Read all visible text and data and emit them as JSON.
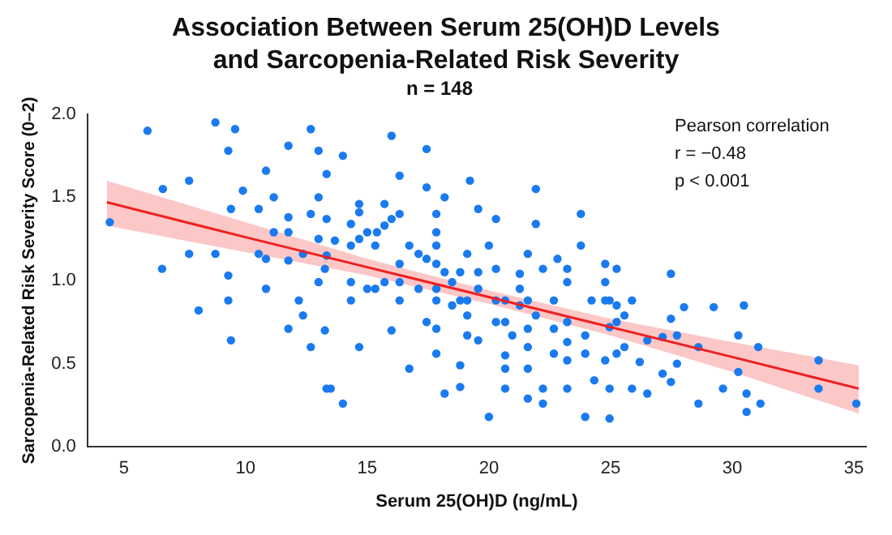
{
  "chart_data": {
    "type": "scatter",
    "title": "Association Between Serum 25(OH)D Levels and Sarcopenia-Related Risk Severity",
    "subtitle": "n = 148",
    "xlabel": "Serum 25(OH)D (ng/mL)",
    "ylabel": "Sarcopenia-Related Risk Severity Score (0–2)",
    "annotations": [
      "Pearson correlation",
      "r = −0.48",
      "p < 0.001"
    ],
    "xlim": [
      3.5,
      35.5
    ],
    "xticks": [
      5,
      10,
      15,
      20,
      25,
      30,
      35
    ],
    "ylim": [
      0,
      2
    ],
    "yticks": [
      {
        "value": 0,
        "label": "0.0"
      },
      0.5,
      {
        "value": 1,
        "label": "1.0"
      },
      1.5,
      {
        "value": 2,
        "label": "2.0"
      }
    ],
    "grid": false,
    "legend": false,
    "series": [
      {
        "marker": "circle",
        "color": "#1a7af0",
        "x": [
          4.42,
          5.97,
          6.6,
          6.57,
          7.68,
          7.68,
          8.07,
          8.76,
          8.76,
          9.29,
          9.57,
          9.4,
          9.29,
          9.29,
          9.4,
          9.89,
          10.54,
          10.54,
          10.84,
          10.84,
          10.84,
          11.16,
          11.16,
          11.76,
          11.76,
          11.76,
          11.76,
          11.76,
          12.19,
          12.36,
          12.36,
          12.68,
          12.68,
          12.68,
          13.0,
          13.0,
          13.0,
          13.0,
          13.26,
          13.26,
          13.5,
          13.33,
          13.33,
          13.33,
          13.33,
          13.67,
          14.0,
          14.0,
          14.33,
          14.33,
          14.33,
          14.33,
          14.67,
          14.67,
          14.67,
          14.67,
          15.0,
          15.0,
          15.33,
          15.33,
          15.4,
          15.71,
          15.71,
          15.71,
          16.0,
          16.0,
          16.0,
          16.33,
          16.33,
          16.33,
          16.33,
          16.33,
          16.73,
          16.73,
          17.11,
          17.11,
          17.44,
          17.44,
          17.44,
          17.44,
          17.84,
          17.84,
          17.84,
          17.84,
          17.84,
          17.84,
          17.84,
          17.84,
          18.18,
          18.18,
          18.18,
          18.49,
          18.49,
          18.82,
          18.82,
          18.82,
          18.82,
          19.11,
          19.11,
          19.11,
          19.11,
          19.22,
          19.56,
          19.56,
          19.56,
          19.56,
          20.0,
          20.0,
          20.29,
          20.29,
          20.29,
          20.29,
          20.67,
          20.67,
          20.67,
          20.67,
          20.67,
          20.96,
          21.27,
          21.27,
          21.27,
          21.6,
          21.6,
          21.6,
          21.6,
          21.6,
          21.6,
          21.93,
          21.93,
          21.93,
          22.22,
          22.22,
          22.22,
          22.67,
          22.67,
          22.67,
          22.82,
          23.22,
          23.22,
          23.22,
          23.22,
          23.22,
          23.22,
          23.78,
          23.78,
          23.96,
          23.96,
          23.96,
          24.22,
          24.33,
          24.78,
          24.78,
          24.78,
          24.78,
          24.96,
          24.96,
          24.96,
          24.96,
          25.25,
          25.25,
          25.25,
          25.25,
          25.57,
          25.57,
          25.88,
          25.88,
          26.2,
          26.51,
          26.51,
          27.14,
          27.14,
          27.48,
          27.48,
          27.48,
          27.73,
          27.73,
          28.02,
          28.61,
          28.61,
          29.24,
          29.62,
          30.25,
          30.25,
          30.48,
          30.59,
          30.59,
          31.07,
          31.16,
          33.55,
          33.55,
          35.1
        ],
        "values": [
          1.35,
          1.9,
          1.55,
          1.07,
          1.6,
          1.16,
          0.82,
          1.95,
          1.16,
          1.78,
          1.91,
          1.43,
          1.03,
          0.88,
          0.64,
          1.54,
          1.43,
          1.16,
          1.66,
          1.13,
          0.95,
          1.29,
          1.5,
          1.81,
          1.38,
          1.29,
          1.12,
          0.71,
          0.88,
          0.79,
          1.16,
          1.91,
          1.4,
          0.6,
          1.78,
          1.5,
          1.25,
          0.99,
          1.07,
          0.7,
          0.35,
          1.64,
          1.37,
          1.15,
          0.35,
          1.24,
          1.75,
          0.26,
          1.34,
          1.21,
          0.99,
          0.88,
          1.46,
          1.41,
          1.25,
          0.6,
          1.29,
          0.95,
          1.21,
          0.95,
          1.29,
          1.46,
          1.33,
          0.99,
          1.87,
          1.37,
          0.7,
          1.63,
          1.4,
          1.1,
          0.99,
          0.88,
          1.21,
          0.47,
          1.16,
          0.95,
          1.79,
          1.56,
          1.13,
          0.75,
          1.4,
          1.29,
          1.21,
          1.1,
          0.95,
          0.88,
          0.71,
          0.56,
          1.5,
          1.05,
          0.32,
          0.99,
          0.85,
          0.88,
          0.49,
          0.36,
          1.05,
          1.16,
          0.88,
          0.79,
          0.67,
          1.6,
          1.43,
          1.05,
          0.95,
          0.64,
          1.21,
          0.18,
          1.37,
          1.07,
          0.88,
          0.75,
          0.88,
          0.75,
          0.55,
          0.47,
          0.35,
          0.67,
          1.04,
          0.95,
          0.85,
          1.16,
          0.88,
          0.71,
          0.6,
          0.47,
          0.29,
          1.55,
          1.34,
          0.79,
          1.07,
          0.35,
          0.26,
          0.88,
          0.71,
          0.56,
          1.13,
          1.07,
          0.99,
          0.75,
          0.63,
          0.52,
          0.35,
          1.4,
          1.21,
          0.67,
          0.56,
          0.18,
          0.88,
          0.4,
          1.1,
          0.99,
          0.88,
          0.52,
          0.88,
          0.35,
          0.17,
          0.72,
          1.07,
          0.85,
          0.75,
          0.56,
          0.79,
          0.6,
          0.88,
          0.35,
          0.51,
          0.64,
          0.32,
          0.66,
          0.44,
          1.04,
          0.77,
          0.39,
          0.67,
          0.5,
          0.84,
          0.6,
          0.26,
          0.84,
          0.35,
          0.67,
          0.45,
          0.85,
          0.32,
          0.21,
          0.6,
          0.26,
          0.52,
          0.35,
          0.26
        ]
      },
      {
        "type": "line",
        "color": "#ee2020",
        "x": [
          4.3,
          10,
          15,
          20,
          25,
          30,
          35.2
        ],
        "values": [
          1.47,
          1.26,
          1.08,
          0.9,
          0.72,
          0.54,
          0.35
        ],
        "lower": [
          1.33,
          1.17,
          1.03,
          0.86,
          0.67,
          0.45,
          0.2
        ],
        "upper": [
          1.6,
          1.35,
          1.13,
          0.94,
          0.77,
          0.63,
          0.49
        ]
      }
    ]
  }
}
